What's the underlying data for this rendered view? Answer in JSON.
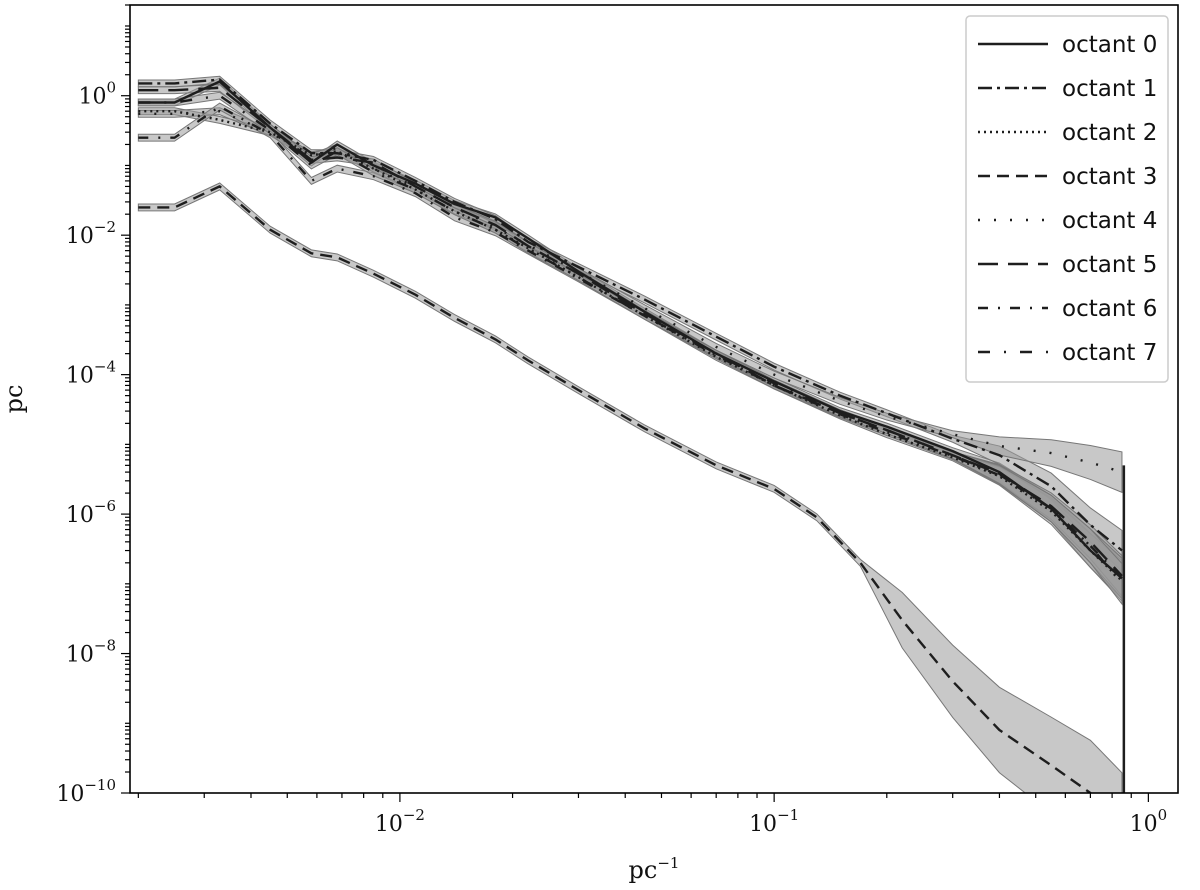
{
  "chart_data": {
    "type": "line",
    "title": "",
    "xlabel": "pc",
    "xlabel_sup": "−1",
    "ylabel": "pc",
    "xscale": "log",
    "yscale": "log",
    "xlim": [
      0.0019,
      1.2
    ],
    "ylim": [
      1e-10,
      20
    ],
    "grid": false,
    "legend_position": "top-right",
    "x_ticks": [
      {
        "value": 0.01,
        "base": "10",
        "exp": "−2"
      },
      {
        "value": 0.1,
        "base": "10",
        "exp": "−1"
      },
      {
        "value": 1,
        "base": "10",
        "exp": "0"
      }
    ],
    "y_ticks": [
      {
        "value": 1,
        "base": "10",
        "exp": "0"
      },
      {
        "value": 0.01,
        "base": "10",
        "exp": "−2"
      },
      {
        "value": 0.0001,
        "base": "10",
        "exp": "−4"
      },
      {
        "value": 1e-06,
        "base": "10",
        "exp": "−6"
      },
      {
        "value": 1e-08,
        "base": "10",
        "exp": "−8"
      },
      {
        "value": 1e-10,
        "base": "10",
        "exp": "−10"
      }
    ],
    "colors": {
      "line": "#1e1e1e",
      "band": "#9a9a9a",
      "axis": "#000000",
      "legend_border": "#cccccc"
    },
    "series": [
      {
        "name": "octant 0",
        "dash": "solid",
        "x": [
          0.002,
          0.0025,
          0.0033,
          0.0045,
          0.0058,
          0.0068,
          0.0085,
          0.011,
          0.014,
          0.018,
          0.022,
          0.03,
          0.045,
          0.07,
          0.1,
          0.15,
          0.2,
          0.3,
          0.4,
          0.55,
          0.7,
          0.85
        ],
        "y": [
          0.8,
          0.8,
          1.6,
          0.35,
          0.11,
          0.2,
          0.1,
          0.055,
          0.028,
          0.018,
          0.009,
          0.003,
          0.0008,
          0.0002,
          8e-05,
          3e-05,
          1.8e-05,
          8e-06,
          4e-06,
          1.2e-06,
          3e-07,
          1.2e-07
        ]
      },
      {
        "name": "octant 1",
        "dash": "dashdot",
        "x": [
          0.002,
          0.0025,
          0.0033,
          0.0045,
          0.0058,
          0.0068,
          0.0085,
          0.011,
          0.014,
          0.018,
          0.022,
          0.03,
          0.045,
          0.07,
          0.1,
          0.15,
          0.2,
          0.3,
          0.4,
          0.55,
          0.7,
          0.85
        ],
        "y": [
          1.5,
          1.5,
          1.7,
          0.4,
          0.15,
          0.15,
          0.12,
          0.06,
          0.03,
          0.017,
          0.008,
          0.0035,
          0.0012,
          0.00035,
          0.00013,
          5e-05,
          2.8e-05,
          1.2e-05,
          7e-06,
          2.5e-06,
          7e-07,
          3e-07
        ]
      },
      {
        "name": "octant 2",
        "dash": "dotted",
        "x": [
          0.002,
          0.0025,
          0.0033,
          0.0045,
          0.0058,
          0.0068,
          0.0085,
          0.011,
          0.014,
          0.018,
          0.022,
          0.03,
          0.045,
          0.07,
          0.1,
          0.15,
          0.2,
          0.3,
          0.4,
          0.55,
          0.7,
          0.85
        ],
        "y": [
          0.6,
          0.6,
          0.45,
          0.3,
          0.14,
          0.16,
          0.09,
          0.045,
          0.022,
          0.012,
          0.0065,
          0.0025,
          0.0007,
          0.00018,
          7e-05,
          2.6e-05,
          1.4e-05,
          6.5e-06,
          3.5e-06,
          1.1e-06,
          3e-07,
          1.1e-07
        ]
      },
      {
        "name": "octant 3",
        "dash": "dashed",
        "x": [
          0.002,
          0.0025,
          0.0033,
          0.0045,
          0.0058,
          0.0068,
          0.0085,
          0.011,
          0.014,
          0.018,
          0.022,
          0.03,
          0.045,
          0.07,
          0.1,
          0.13,
          0.17,
          0.22,
          0.3,
          0.4,
          0.55,
          0.7,
          0.85
        ],
        "y": [
          0.025,
          0.025,
          0.05,
          0.012,
          0.0055,
          0.0048,
          0.0028,
          0.0014,
          0.00065,
          0.00032,
          0.00016,
          6e-05,
          1.7e-05,
          5e-06,
          2.3e-06,
          9e-07,
          2e-07,
          3e-08,
          4e-09,
          8e-10,
          2.5e-10,
          1e-10,
          3e-11
        ]
      },
      {
        "name": "octant 4",
        "dash": "loosedot",
        "x": [
          0.002,
          0.0025,
          0.0033,
          0.0045,
          0.0058,
          0.0068,
          0.0085,
          0.011,
          0.014,
          0.018,
          0.022,
          0.03,
          0.045,
          0.07,
          0.1,
          0.15,
          0.2,
          0.3,
          0.4,
          0.55,
          0.7,
          0.85
        ],
        "y": [
          0.55,
          0.55,
          0.6,
          0.3,
          0.13,
          0.18,
          0.09,
          0.05,
          0.025,
          0.013,
          0.0072,
          0.003,
          0.0009,
          0.00025,
          0.0001,
          4.2e-05,
          2.5e-05,
          1.4e-05,
          9.5e-06,
          7.5e-06,
          5.5e-06,
          4e-06
        ]
      },
      {
        "name": "octant 5",
        "dash": "longdash",
        "x": [
          0.002,
          0.0025,
          0.0033,
          0.0045,
          0.0058,
          0.0068,
          0.0085,
          0.011,
          0.014,
          0.018,
          0.022,
          0.03,
          0.045,
          0.07,
          0.1,
          0.15,
          0.2,
          0.3,
          0.4,
          0.55,
          0.7,
          0.85
        ],
        "y": [
          1.2,
          1.2,
          1.3,
          0.35,
          0.12,
          0.13,
          0.11,
          0.05,
          0.025,
          0.014,
          0.007,
          0.0028,
          0.00075,
          0.0002,
          7e-05,
          2.8e-05,
          1.6e-05,
          7e-06,
          3.8e-06,
          1.3e-06,
          4e-07,
          1.3e-07
        ]
      },
      {
        "name": "octant 6",
        "dash": "dashdotsparse",
        "x": [
          0.002,
          0.0025,
          0.0033,
          0.0045,
          0.0058,
          0.0068,
          0.0085,
          0.011,
          0.014,
          0.018,
          0.022,
          0.03,
          0.045,
          0.07,
          0.1,
          0.15,
          0.2,
          0.3,
          0.4,
          0.55,
          0.7,
          0.85
        ],
        "y": [
          0.25,
          0.25,
          0.7,
          0.28,
          0.06,
          0.09,
          0.07,
          0.04,
          0.018,
          0.011,
          0.006,
          0.0024,
          0.0007,
          0.00019,
          7e-05,
          2.7e-05,
          1.5e-05,
          6.8e-06,
          3.6e-06,
          1.2e-06,
          3.5e-07,
          1.2e-07
        ]
      },
      {
        "name": "octant 7",
        "dash": "dashsparsedot",
        "x": [
          0.002,
          0.0025,
          0.0033,
          0.0045,
          0.0058,
          0.0068,
          0.0085,
          0.011,
          0.014,
          0.018,
          0.022,
          0.03,
          0.045,
          0.07,
          0.1,
          0.15,
          0.2,
          0.3,
          0.4,
          0.55,
          0.7,
          0.85
        ],
        "y": [
          0.8,
          0.8,
          1.0,
          0.32,
          0.1,
          0.16,
          0.08,
          0.045,
          0.022,
          0.012,
          0.0062,
          0.0025,
          0.0007,
          0.0002,
          7.5e-05,
          2.8e-05,
          1.6e-05,
          7e-06,
          3.7e-06,
          1.2e-06,
          3.5e-07,
          1e-07
        ]
      }
    ]
  }
}
